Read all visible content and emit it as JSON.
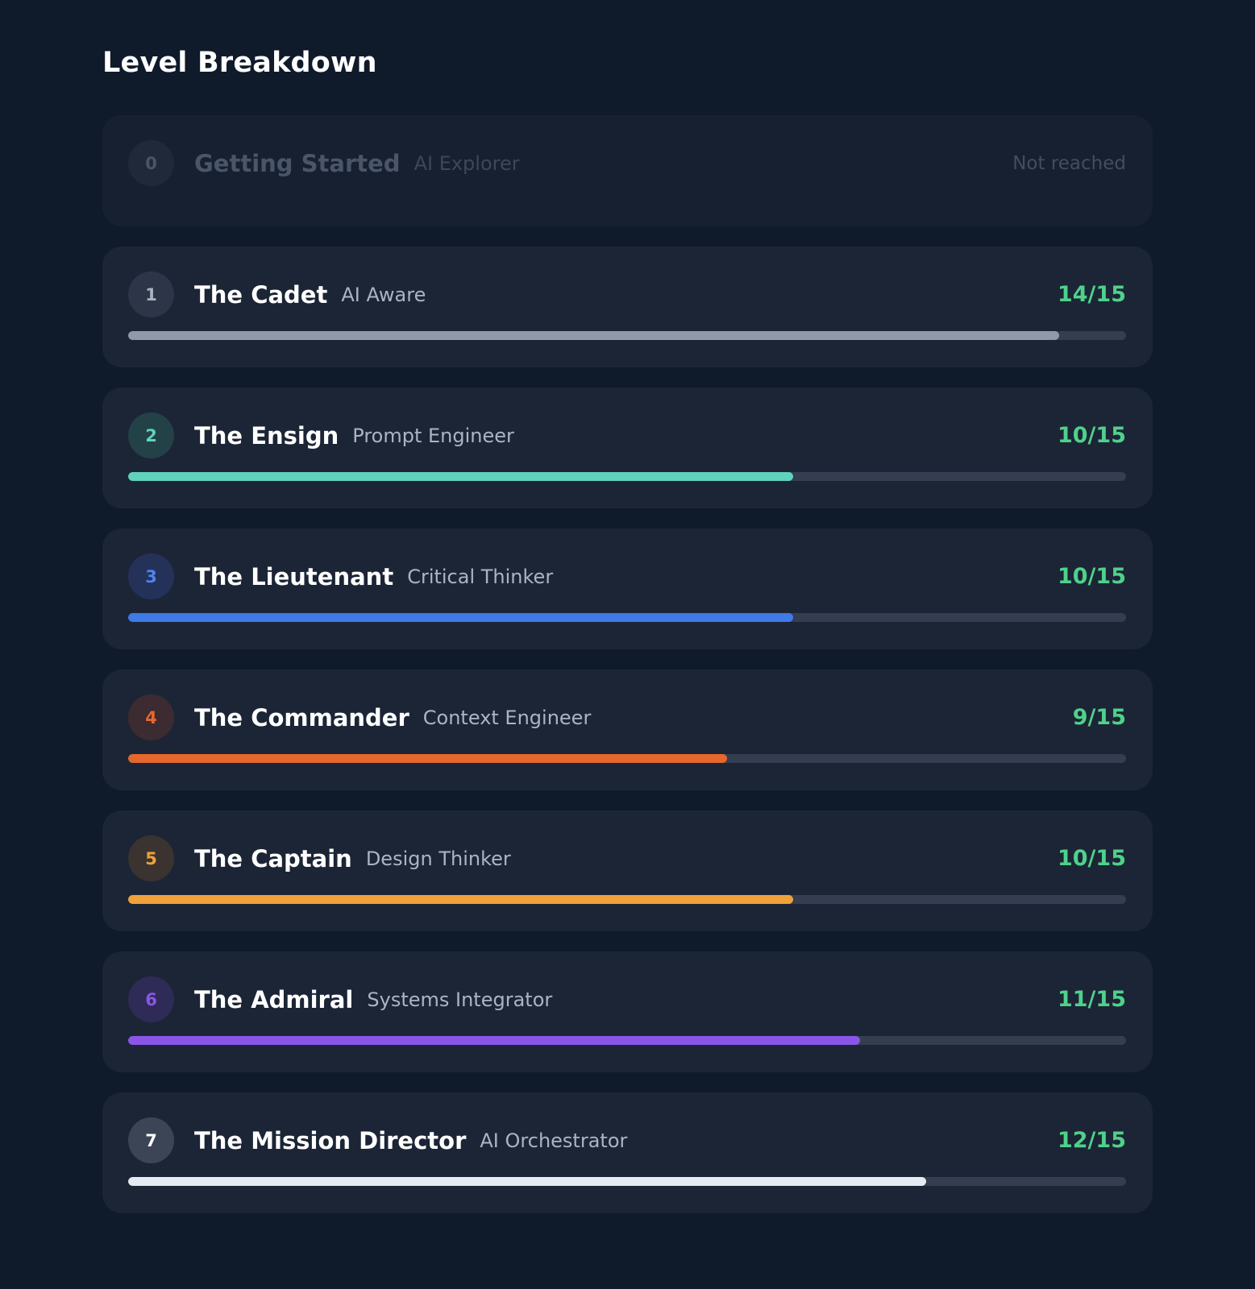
{
  "header": {
    "title": "Level Breakdown"
  },
  "levels": [
    {
      "number": "0",
      "name": "Getting Started",
      "role": "AI Explorer",
      "status": "Not reached",
      "reached": false,
      "badge_bg": "#1f2939",
      "badge_color": "#4a5568"
    },
    {
      "number": "1",
      "name": "The Cadet",
      "role": "AI Aware",
      "score": "14/15",
      "progress": 0.9333,
      "reached": true,
      "accent": "#8f9aa9",
      "badge_bg": "#2c3648",
      "badge_color": "#a9b3c1"
    },
    {
      "number": "2",
      "name": "The Ensign",
      "role": "Prompt Engineer",
      "score": "10/15",
      "progress": 0.6667,
      "reached": true,
      "accent": "#5fd3bc",
      "badge_bg": "#234247",
      "badge_color": "#5fd3bc"
    },
    {
      "number": "3",
      "name": "The Lieutenant",
      "role": "Critical Thinker",
      "score": "10/15",
      "progress": 0.6667,
      "reached": true,
      "accent": "#3f7ae6",
      "badge_bg": "#24325a",
      "badge_color": "#4d84ef"
    },
    {
      "number": "4",
      "name": "The Commander",
      "role": "Context Engineer",
      "score": "9/15",
      "progress": 0.6,
      "reached": true,
      "accent": "#e5672c",
      "badge_bg": "#3c2b30",
      "badge_color": "#e5672c"
    },
    {
      "number": "5",
      "name": "The Captain",
      "role": "Design Thinker",
      "score": "10/15",
      "progress": 0.6667,
      "reached": true,
      "accent": "#efa23a",
      "badge_bg": "#3b3330",
      "badge_color": "#efa23a"
    },
    {
      "number": "6",
      "name": "The Admiral",
      "role": "Systems Integrator",
      "score": "11/15",
      "progress": 0.7333,
      "reached": true,
      "accent": "#8a56e8",
      "badge_bg": "#2e2b56",
      "badge_color": "#8a56e8"
    },
    {
      "number": "7",
      "name": "The Mission Director",
      "role": "AI Orchestrator",
      "score": "12/15",
      "progress": 0.8,
      "reached": true,
      "accent": "#e6ebf3",
      "badge_bg": "#3b4556",
      "badge_color": "#ffffff"
    }
  ]
}
